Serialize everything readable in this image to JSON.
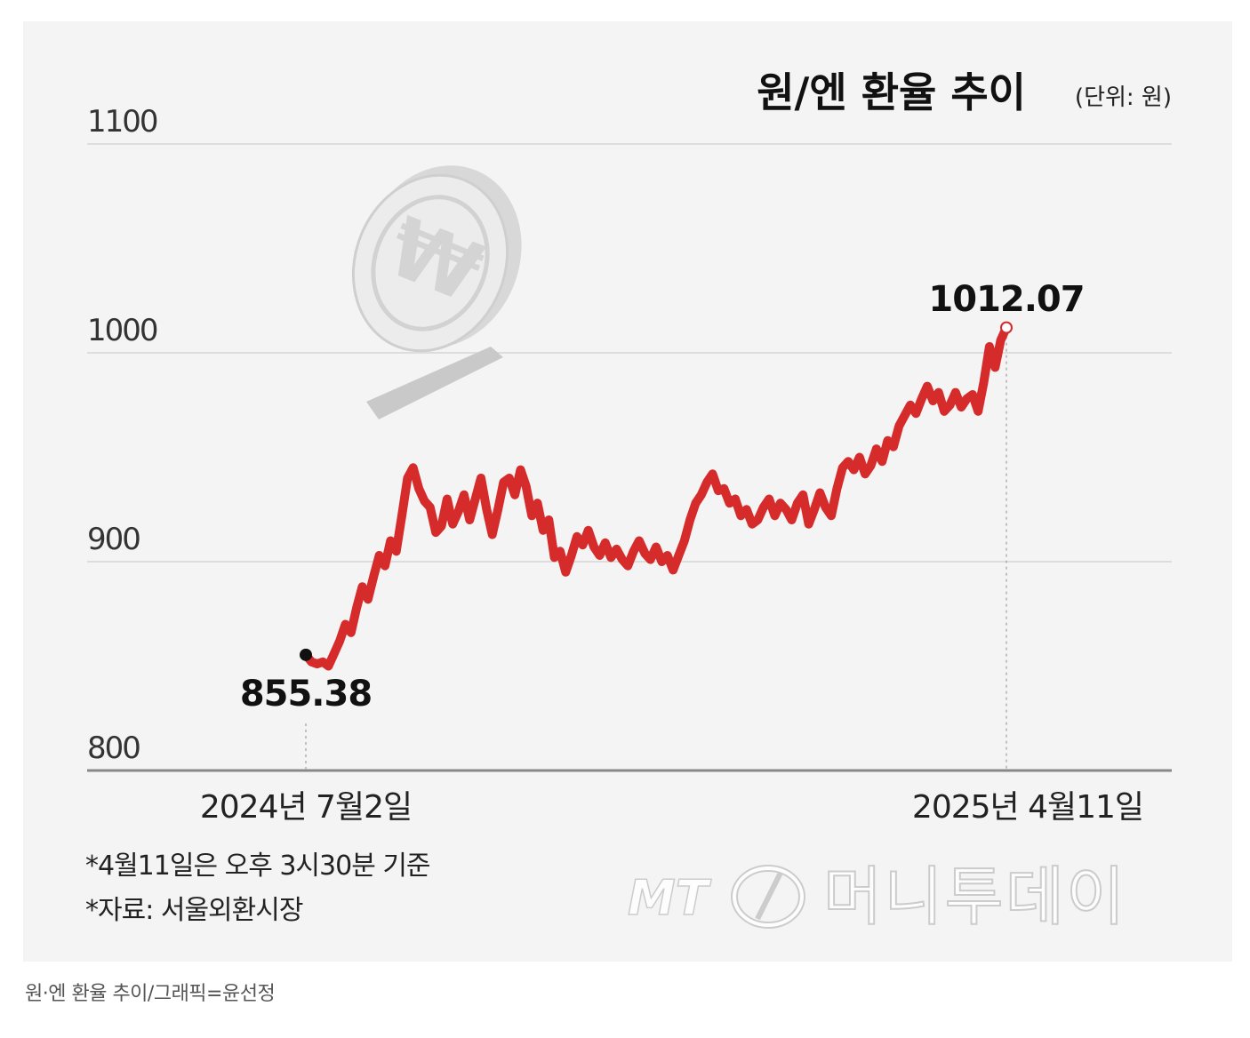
{
  "chart_data": {
    "type": "line",
    "title": "원/엔 환율 추이",
    "unit_label": "(단위: 원)",
    "ylim": [
      800,
      1100
    ],
    "yticks": [
      "1100",
      "1000",
      "900",
      "800"
    ],
    "x_labels": {
      "start": "2024년 7월2일",
      "end": "2025년 4월11일"
    },
    "start_value_label": "855.38",
    "end_value_label": "1012.07",
    "line_color": "#d62b2b",
    "series": [
      {
        "x_start": "2024-07-02",
        "x_end": "2025-04-11",
        "values": [
          855.38,
          852,
          851,
          852,
          850,
          856,
          862,
          870,
          866,
          878,
          888,
          882,
          893,
          903,
          898,
          910,
          905,
          922,
          940,
          945,
          935,
          929,
          926,
          914,
          917,
          930,
          918,
          924,
          932,
          920,
          930,
          940,
          925,
          913,
          925,
          938,
          940,
          932,
          944,
          936,
          922,
          928,
          915,
          920,
          902,
          905,
          895,
          903,
          912,
          908,
          915,
          907,
          903,
          909,
          902,
          906,
          901,
          898,
          905,
          910,
          904,
          901,
          907,
          900,
          903,
          896,
          903,
          910,
          920,
          928,
          932,
          938,
          942,
          934,
          935,
          928,
          930,
          922,
          925,
          918,
          920,
          926,
          930,
          922,
          928,
          925,
          920,
          928,
          932,
          918,
          925,
          933,
          926,
          922,
          935,
          945,
          948,
          944,
          950,
          942,
          946,
          954,
          948,
          958,
          955,
          965,
          970,
          975,
          971,
          978,
          984,
          977,
          981,
          972,
          975,
          981,
          974,
          978,
          980,
          972,
          986,
          1003,
          993,
          1006,
          1012.07
        ]
      }
    ],
    "footnotes": [
      "*4월11일은 오후 3시30분 기준",
      "*자료: 서울외환시장"
    ]
  },
  "watermark": {
    "mt": "MT",
    "name": "머니투데이"
  },
  "caption": "원·엔 환율 추이/그래픽=윤선정"
}
